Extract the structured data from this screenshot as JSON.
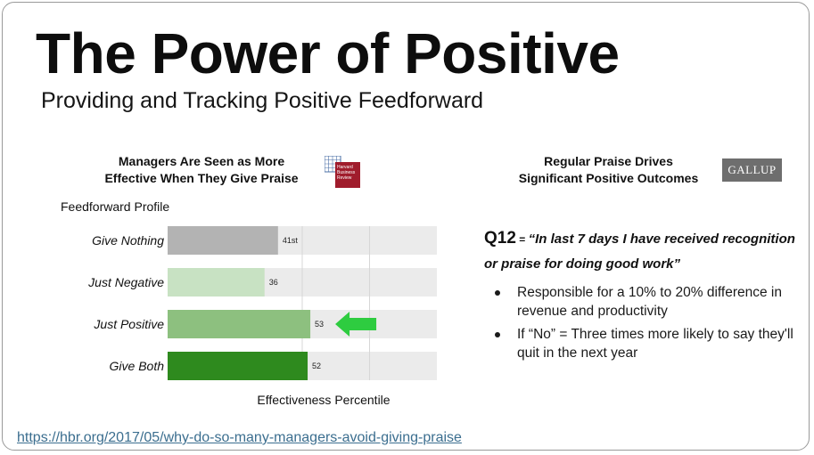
{
  "slide": {
    "title": "The Power of Positive",
    "subtitle": "Providing and Tracking Positive Feedforward",
    "source_url": "https://hbr.org/2017/05/why-do-so-many-managers-avoid-giving-praise"
  },
  "left_panel": {
    "title_line1": "Managers Are Seen as More",
    "title_line2": "Effective When They Give Praise",
    "logo_text": "Harvard Business Review",
    "profile_label": "Feedforward  Profile"
  },
  "chart_data": {
    "type": "bar",
    "orientation": "horizontal",
    "title": "Managers Are Seen as More Effective When They Give Praise",
    "ylabel": "Feedforward  Profile",
    "xlabel": "Effectiveness Percentile",
    "xlim": [
      0,
      100
    ],
    "grid": true,
    "categories": [
      "Give Nothing",
      "Just Negative",
      "Just Positive",
      "Give Both"
    ],
    "values": [
      41,
      36,
      53,
      52
    ],
    "value_labels": [
      "41st",
      "36",
      "53",
      "52"
    ],
    "bar_colors": [
      "#b3b3b3",
      "#c8e2c3",
      "#8dc07f",
      "#2e8a1e"
    ],
    "track_color": "#ebebeb",
    "highlight_category": "Just Positive",
    "highlight_color": "#2ecc40"
  },
  "right_panel": {
    "title_line1": "Regular Praise Drives",
    "title_line2": "Significant Positive Outcomes",
    "logo_text": "GALLUP",
    "q12_label": "Q12",
    "q12_eq": " = ",
    "q12_quote": "“In last 7 days I have received recognition or praise for doing good work”",
    "bullets": [
      "Responsible for a 10% to 20% difference in revenue and productivity",
      "If “No” = Three times more likely to say they'll quit in the next year"
    ]
  }
}
